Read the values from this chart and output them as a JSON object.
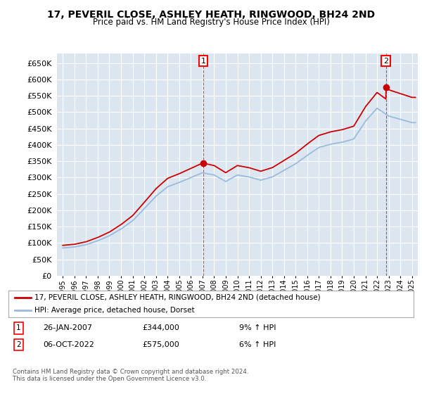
{
  "title": "17, PEVERIL CLOSE, ASHLEY HEATH, RINGWOOD, BH24 2ND",
  "subtitle": "Price paid vs. HM Land Registry's House Price Index (HPI)",
  "line1_label": "17, PEVERIL CLOSE, ASHLEY HEATH, RINGWOOD, BH24 2ND (detached house)",
  "line2_label": "HPI: Average price, detached house, Dorset",
  "line1_color": "#cc0000",
  "line2_color": "#99bbdd",
  "background_color": "#dce6f1",
  "annotation1": {
    "num": "1",
    "date": "26-JAN-2007",
    "price": "£344,000",
    "pct": "9% ↑ HPI"
  },
  "annotation2": {
    "num": "2",
    "date": "06-OCT-2022",
    "price": "£575,000",
    "pct": "6% ↑ HPI"
  },
  "footer": "Contains HM Land Registry data © Crown copyright and database right 2024.\nThis data is licensed under the Open Government Licence v3.0.",
  "ylim": [
    0,
    680000
  ],
  "ytick_step": 50000,
  "sale1_year": 2007.07,
  "sale1_price": 344000,
  "sale2_year": 2022.76,
  "sale2_price": 575000,
  "years_hpi": [
    1995,
    1996,
    1997,
    1998,
    1999,
    2000,
    2001,
    2002,
    2003,
    2004,
    2005,
    2006,
    2007,
    2008,
    2009,
    2010,
    2011,
    2012,
    2013,
    2014,
    2015,
    2016,
    2017,
    2018,
    2019,
    2020,
    2021,
    2022,
    2023,
    2024,
    2025
  ],
  "hpi_values": [
    85000,
    88000,
    95000,
    107000,
    122000,
    143000,
    168000,
    205000,
    243000,
    272000,
    285000,
    300000,
    315000,
    308000,
    288000,
    308000,
    302000,
    292000,
    302000,
    322000,
    342000,
    368000,
    392000,
    402000,
    408000,
    418000,
    472000,
    512000,
    488000,
    478000,
    468000
  ]
}
